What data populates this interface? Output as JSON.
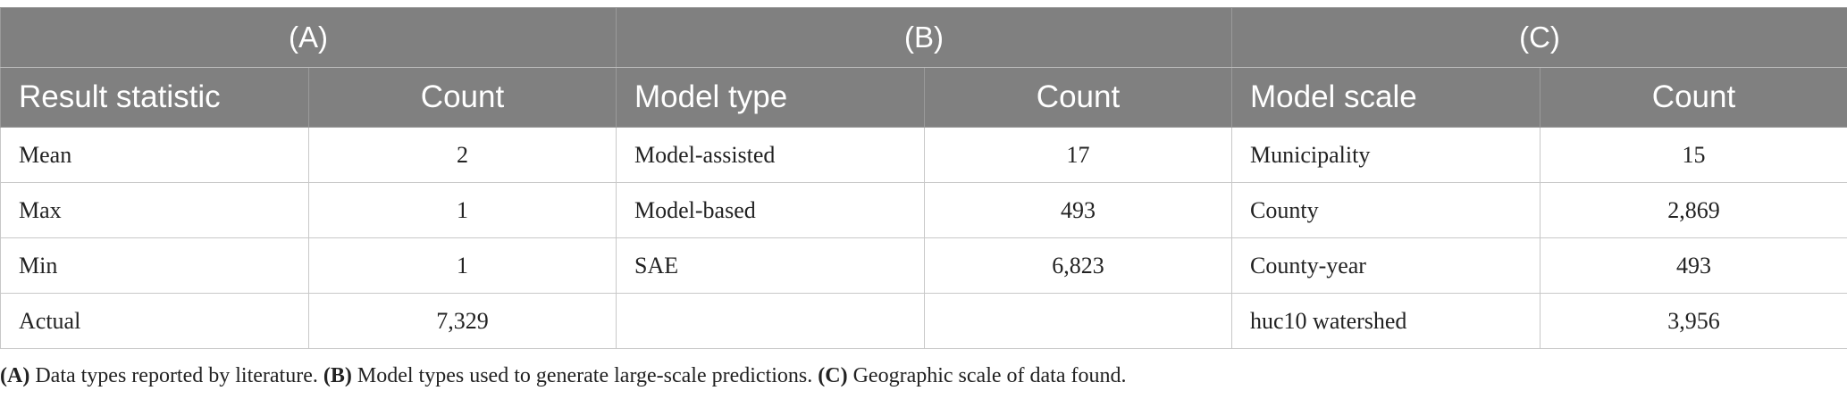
{
  "groups": [
    {
      "label": "(A)"
    },
    {
      "label": "(B)"
    },
    {
      "label": "(C)"
    }
  ],
  "columns": [
    "Result statistic",
    "Count",
    "Model type",
    "Count",
    "Model scale",
    "Count"
  ],
  "rows": [
    [
      "Mean",
      "2",
      "Model-assisted",
      "17",
      "Municipality",
      "15"
    ],
    [
      "Max",
      "1",
      "Model-based",
      "493",
      "County",
      "2,869"
    ],
    [
      "Min",
      "1",
      "SAE",
      "6,823",
      "County-year",
      "493"
    ],
    [
      "Actual",
      "7,329",
      "",
      "",
      "huc10 watershed",
      "3,956"
    ]
  ],
  "caption": {
    "a_tag": "(A)",
    "a_text": " Data types reported by literature. ",
    "b_tag": "(B)",
    "b_text": " Model types used to generate large-scale predictions. ",
    "c_tag": "(C)",
    "c_text": " Geographic scale of data found."
  }
}
